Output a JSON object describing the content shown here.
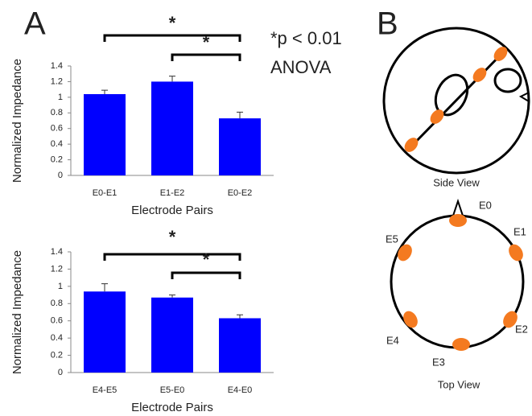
{
  "panels": {
    "a": "A",
    "b": "B"
  },
  "significance_note": [
    "*p < 0.01",
    "ANOVA"
  ],
  "chart_data": [
    {
      "type": "bar",
      "y_label": "Normalized Impedance",
      "x_label": "Electrode Pairs",
      "categories": [
        "E0-E1",
        "E1-E2",
        "E0-E2"
      ],
      "values": [
        1.04,
        1.2,
        0.73
      ],
      "errors": [
        0.05,
        0.07,
        0.08
      ],
      "color": "#0000ff",
      "ylim": [
        0,
        1.4
      ],
      "yticks": [
        0,
        0.2,
        0.4,
        0.6,
        0.8,
        1,
        1.2,
        1.4
      ],
      "annotations": [
        "*",
        "*"
      ]
    },
    {
      "type": "bar",
      "y_label": "Normalized Impedance",
      "x_label": "Electrode Pairs",
      "categories": [
        "E4-E5",
        "E5-E0",
        "E4-E0"
      ],
      "values": [
        0.94,
        0.87,
        0.63
      ],
      "errors": [
        0.09,
        0.03,
        0.04
      ],
      "color": "#0000ff",
      "ylim": [
        0,
        1.4
      ],
      "yticks": [
        0,
        0.2,
        0.4,
        0.6,
        0.8,
        1,
        1.2,
        1.4
      ],
      "annotations": [
        "*",
        "*"
      ]
    }
  ],
  "diagram": {
    "side_view": "Side View",
    "top_view": "Top View",
    "electrodes": [
      "E0",
      "E1",
      "E2",
      "E3",
      "E4",
      "E5"
    ]
  }
}
